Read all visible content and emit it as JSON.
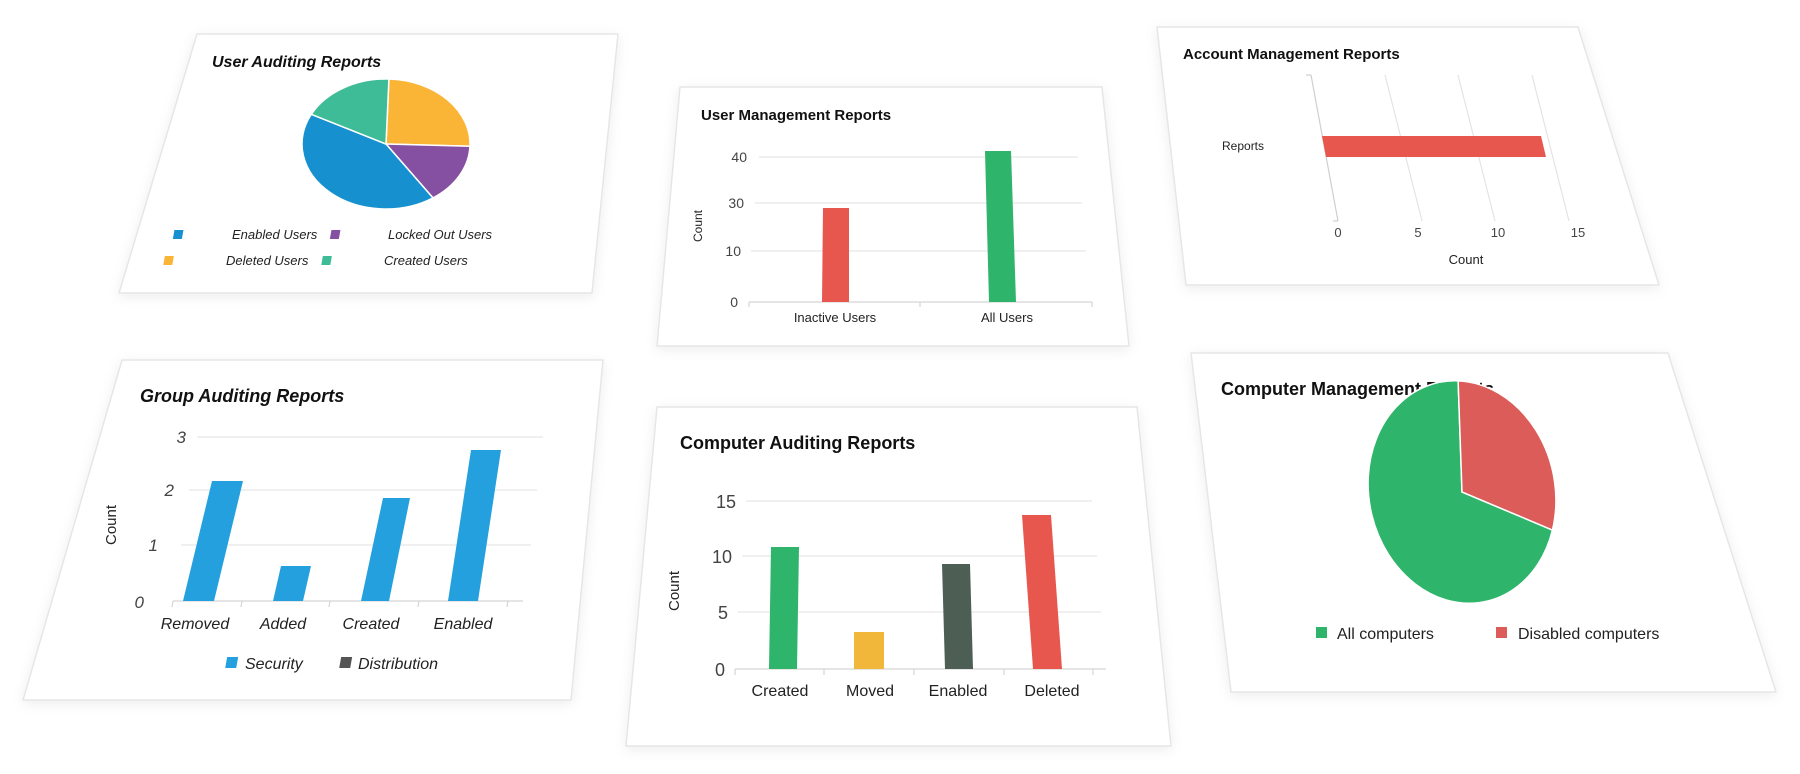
{
  "page": {
    "background": "#ffffff",
    "card_fill": "#ffffff",
    "card_border": "#e6e6e6",
    "grid_color": "#e8e8e8"
  },
  "chart_data": [
    {
      "id": "user-auditing",
      "type": "pie",
      "title": "User Auditing Reports",
      "categories": [
        "Deleted Users",
        "Locked Out Users",
        "Enabled Users",
        "Created Users"
      ],
      "values": [
        25,
        15,
        42,
        18
      ],
      "colors": [
        "#fbb536",
        "#8550a1",
        "#1790cf",
        "#3ebc98"
      ],
      "legend": [
        {
          "label": "Enabled Users",
          "color": "#1790cf"
        },
        {
          "label": "Locked Out Users",
          "color": "#8550a1"
        },
        {
          "label": "Deleted Users",
          "color": "#fbb536"
        },
        {
          "label": "Created Users",
          "color": "#3ebc98"
        }
      ],
      "legend_position": "bottom"
    },
    {
      "id": "user-management",
      "type": "bar",
      "title": "User Management Reports",
      "categories": [
        "Inactive Users",
        "All Users"
      ],
      "values": [
        29,
        41
      ],
      "colors": [
        "#e8574e",
        "#2fb46c"
      ],
      "xlabel": "",
      "ylabel": "Count",
      "yticks": [
        "0",
        "10",
        "30",
        "40"
      ],
      "ylim": [
        0,
        40
      ],
      "grid": true
    },
    {
      "id": "account-management",
      "type": "bar",
      "orientation": "horizontal",
      "title": "Account Management Reports",
      "categories": [
        "Reports"
      ],
      "values": [
        13
      ],
      "colors": [
        "#e8574e"
      ],
      "xlabel": "Count",
      "ylabel": "",
      "xticks": [
        "0",
        "5",
        "10",
        "15"
      ],
      "xlim": [
        0,
        15
      ],
      "grid": true
    },
    {
      "id": "group-auditing",
      "type": "bar",
      "title": "Group Auditing Reports",
      "categories": [
        "Removed",
        "Added",
        "Created",
        "Enabled"
      ],
      "series": [
        {
          "name": "Security",
          "values": [
            2.2,
            0.7,
            1.9,
            2.8
          ],
          "color": "#23a0dd"
        },
        {
          "name": "Distribution",
          "values": [
            0,
            0,
            0,
            0
          ],
          "color": "#555555"
        }
      ],
      "xlabel": "",
      "ylabel": "Count",
      "yticks": [
        "0",
        "1",
        "2",
        "3"
      ],
      "ylim": [
        0,
        3
      ],
      "grid": true,
      "legend_position": "bottom"
    },
    {
      "id": "computer-auditing",
      "type": "bar",
      "title": "Computer Auditing Reports",
      "categories": [
        "Created",
        "Moved",
        "Enabled",
        "Deleted"
      ],
      "values": [
        11,
        3.3,
        9.5,
        13.8
      ],
      "colors": [
        "#2fb46c",
        "#f0b73a",
        "#4d5f54",
        "#e8574e"
      ],
      "xlabel": "",
      "ylabel": "Count",
      "yticks": [
        "0",
        "5",
        "10",
        "15"
      ],
      "ylim": [
        0,
        15
      ],
      "grid": true
    },
    {
      "id": "computer-management",
      "type": "pie",
      "title": "Computer Management Reports",
      "categories": [
        "All computers",
        "Disabled computers"
      ],
      "values": [
        70,
        30
      ],
      "colors": [
        "#2fb46c",
        "#db5c58"
      ],
      "legend": [
        {
          "label": "All computers",
          "color": "#2fb46c"
        },
        {
          "label": "Disabled computers",
          "color": "#db5c58"
        }
      ],
      "legend_position": "bottom"
    }
  ]
}
